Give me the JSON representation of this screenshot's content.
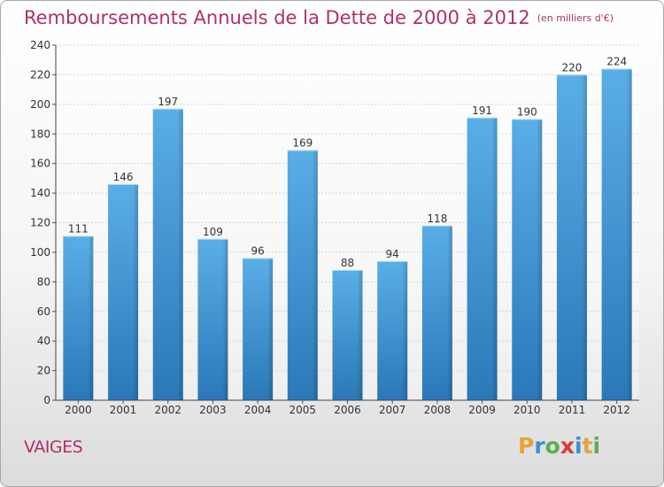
{
  "title": "Remboursements Annuels de la Dette de 2000 à 2012",
  "subtitle": "(en milliers d'€)",
  "commune": "VAIGES",
  "logo": {
    "letters": [
      "P",
      "r",
      "o",
      "x",
      "i",
      "t",
      "i"
    ],
    "colors": [
      "#e8a23a",
      "#3a8fd0",
      "#5ab04a",
      "#d83a3a",
      "#3a8fd0",
      "#e8a23a",
      "#5ab04a"
    ]
  },
  "colors": {
    "bar_top": "#5aaee6",
    "bar_bottom": "#2a78b8",
    "title": "#b0306a"
  },
  "chart_data": {
    "type": "bar",
    "categories": [
      "2000",
      "2001",
      "2002",
      "2003",
      "2004",
      "2005",
      "2006",
      "2007",
      "2008",
      "2009",
      "2010",
      "2011",
      "2012"
    ],
    "values": [
      111,
      146,
      197,
      109,
      96,
      169,
      88,
      94,
      118,
      191,
      190,
      220,
      224
    ],
    "ylim": [
      0,
      240
    ],
    "yticks": [
      0,
      20,
      40,
      60,
      80,
      100,
      120,
      140,
      160,
      180,
      200,
      220,
      240
    ],
    "grid": true,
    "xlabel": "",
    "ylabel": ""
  }
}
